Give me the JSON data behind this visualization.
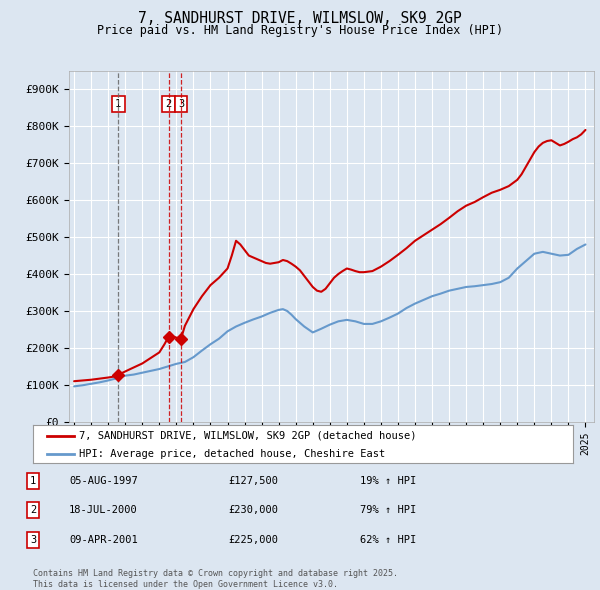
{
  "title": "7, SANDHURST DRIVE, WILMSLOW, SK9 2GP",
  "subtitle": "Price paid vs. HM Land Registry's House Price Index (HPI)",
  "ylim": [
    0,
    950000
  ],
  "yticks": [
    0,
    100000,
    200000,
    300000,
    400000,
    500000,
    600000,
    700000,
    800000,
    900000
  ],
  "ytick_labels": [
    "£0",
    "£100K",
    "£200K",
    "£300K",
    "£400K",
    "£500K",
    "£600K",
    "£700K",
    "£800K",
    "£900K"
  ],
  "background_color": "#dce6f1",
  "grid_color": "#ffffff",
  "hpi_line_color": "#6699cc",
  "price_line_color": "#cc0000",
  "sale_marker_color": "#cc0000",
  "transactions": [
    {
      "num": 1,
      "date_dec": 1997.59,
      "price": 127500,
      "label": "1",
      "vline_color": "#666666"
    },
    {
      "num": 2,
      "date_dec": 2000.54,
      "price": 230000,
      "label": "2",
      "vline_color": "#cc0000"
    },
    {
      "num": 3,
      "date_dec": 2001.27,
      "price": 225000,
      "label": "3",
      "vline_color": "#cc0000"
    }
  ],
  "table_rows": [
    {
      "num": "1",
      "date": "05-AUG-1997",
      "price": "£127,500",
      "change": "19% ↑ HPI"
    },
    {
      "num": "2",
      "date": "18-JUL-2000",
      "price": "£230,000",
      "change": "79% ↑ HPI"
    },
    {
      "num": "3",
      "date": "09-APR-2001",
      "price": "£225,000",
      "change": "62% ↑ HPI"
    }
  ],
  "legend_entries": [
    {
      "label": "7, SANDHURST DRIVE, WILMSLOW, SK9 2GP (detached house)",
      "color": "#cc0000"
    },
    {
      "label": "HPI: Average price, detached house, Cheshire East",
      "color": "#6699cc"
    }
  ],
  "footnote": "Contains HM Land Registry data © Crown copyright and database right 2025.\nThis data is licensed under the Open Government Licence v3.0.",
  "xlim_start": 1994.7,
  "xlim_end": 2025.5,
  "xticks": [
    1995,
    1996,
    1997,
    1998,
    1999,
    2000,
    2001,
    2002,
    2003,
    2004,
    2005,
    2006,
    2007,
    2008,
    2009,
    2010,
    2011,
    2012,
    2013,
    2014,
    2015,
    2016,
    2017,
    2018,
    2019,
    2020,
    2021,
    2022,
    2023,
    2024,
    2025
  ],
  "hpi_data": {
    "years": [
      1995,
      1995.5,
      1996,
      1996.5,
      1997,
      1997.5,
      1998,
      1998.5,
      1999,
      1999.5,
      2000,
      2000.5,
      2001,
      2001.5,
      2002,
      2002.5,
      2003,
      2003.5,
      2004,
      2004.5,
      2005,
      2005.5,
      2006,
      2006.5,
      2007,
      2007.25,
      2007.5,
      2007.75,
      2008,
      2008.5,
      2009,
      2009.5,
      2010,
      2010.5,
      2011,
      2011.5,
      2012,
      2012.5,
      2013,
      2013.5,
      2014,
      2014.5,
      2015,
      2015.5,
      2016,
      2016.5,
      2017,
      2017.5,
      2018,
      2018.5,
      2019,
      2019.5,
      2020,
      2020.5,
      2021,
      2021.5,
      2022,
      2022.5,
      2023,
      2023.5,
      2024,
      2024.5,
      2025
    ],
    "values": [
      96000,
      99000,
      103000,
      107000,
      112000,
      118000,
      125000,
      128000,
      133000,
      138000,
      143000,
      150000,
      157000,
      162000,
      175000,
      193000,
      210000,
      225000,
      245000,
      258000,
      268000,
      277000,
      285000,
      295000,
      303000,
      305000,
      300000,
      290000,
      278000,
      258000,
      242000,
      252000,
      263000,
      272000,
      276000,
      272000,
      265000,
      265000,
      272000,
      282000,
      293000,
      308000,
      320000,
      330000,
      340000,
      347000,
      355000,
      360000,
      365000,
      367000,
      370000,
      373000,
      378000,
      390000,
      415000,
      435000,
      455000,
      460000,
      455000,
      450000,
      452000,
      468000,
      480000
    ]
  },
  "red_data": {
    "years": [
      1995,
      1995.5,
      1996,
      1996.5,
      1997,
      1997.4,
      1997.59,
      1997.8,
      1998.3,
      1999,
      1999.5,
      2000,
      2000.3,
      2000.54,
      2000.7,
      2001.0,
      2001.27,
      2001.5,
      2002,
      2002.5,
      2003,
      2003.5,
      2004,
      2004.25,
      2004.5,
      2004.75,
      2005,
      2005.25,
      2005.5,
      2005.75,
      2006,
      2006.25,
      2006.5,
      2007,
      2007.25,
      2007.5,
      2007.75,
      2008,
      2008.25,
      2008.5,
      2008.75,
      2009,
      2009.25,
      2009.5,
      2009.75,
      2010,
      2010.25,
      2010.5,
      2010.75,
      2011,
      2011.25,
      2011.5,
      2011.75,
      2012,
      2012.5,
      2013,
      2013.5,
      2014,
      2014.5,
      2015,
      2015.5,
      2016,
      2016.5,
      2017,
      2017.5,
      2018,
      2018.5,
      2019,
      2019.5,
      2020,
      2020.5,
      2021,
      2021.25,
      2021.5,
      2021.75,
      2022,
      2022.25,
      2022.5,
      2022.75,
      2023,
      2023.25,
      2023.5,
      2023.75,
      2024,
      2024.25,
      2024.5,
      2024.75,
      2025
    ],
    "values": [
      110000,
      112000,
      114000,
      117000,
      120000,
      123000,
      127500,
      132000,
      143000,
      158000,
      173000,
      188000,
      210000,
      230000,
      232000,
      228000,
      225000,
      260000,
      305000,
      340000,
      370000,
      390000,
      415000,
      450000,
      490000,
      480000,
      465000,
      450000,
      445000,
      440000,
      435000,
      430000,
      428000,
      432000,
      438000,
      435000,
      428000,
      420000,
      410000,
      395000,
      380000,
      365000,
      355000,
      352000,
      360000,
      375000,
      390000,
      400000,
      408000,
      415000,
      412000,
      408000,
      405000,
      405000,
      408000,
      420000,
      435000,
      452000,
      470000,
      490000,
      505000,
      520000,
      535000,
      552000,
      570000,
      585000,
      595000,
      608000,
      620000,
      628000,
      638000,
      655000,
      670000,
      690000,
      710000,
      730000,
      745000,
      755000,
      760000,
      762000,
      755000,
      748000,
      752000,
      758000,
      765000,
      770000,
      778000,
      790000
    ]
  }
}
